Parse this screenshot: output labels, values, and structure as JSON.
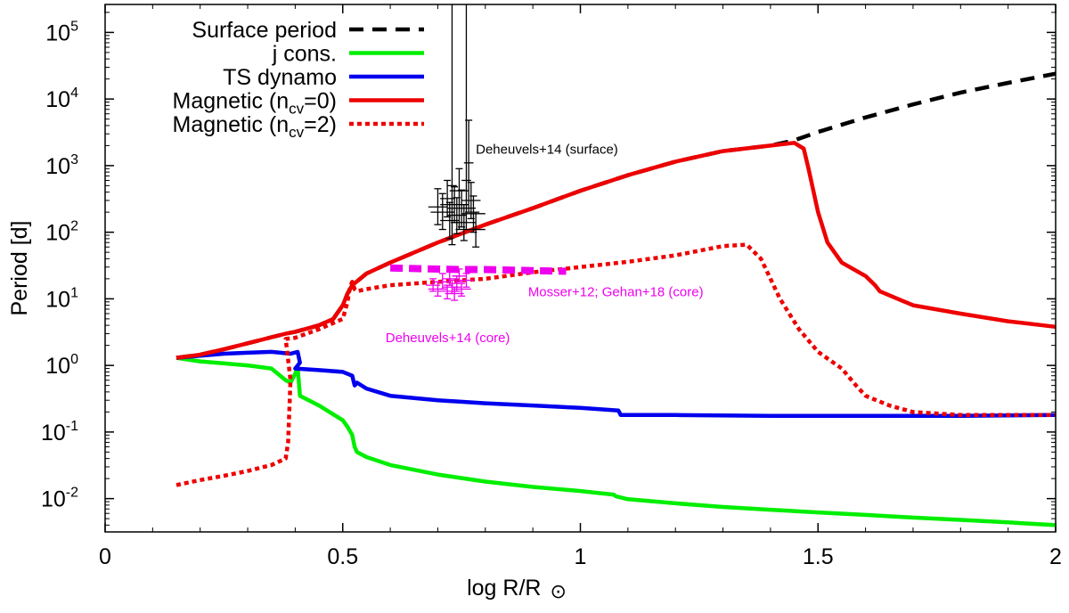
{
  "chart_data": {
    "type": "line",
    "xlabel": "log R/R",
    "xlabel_symbol": "⊙",
    "ylabel": "Period [d]",
    "xlim": [
      0,
      2
    ],
    "ylim_log10": [
      -2.5,
      5.42
    ],
    "y_scale": "log",
    "x_ticks": [
      {
        "value": 0,
        "label": "0"
      },
      {
        "value": 0.5,
        "label": "0.5"
      },
      {
        "value": 1,
        "label": "1"
      },
      {
        "value": 1.5,
        "label": "1.5"
      },
      {
        "value": 2,
        "label": "2"
      }
    ],
    "y_ticks": [
      {
        "exp": -2,
        "label": "10",
        "sup": "-2"
      },
      {
        "exp": -1,
        "label": "10",
        "sup": "-1"
      },
      {
        "exp": 0,
        "label": "10",
        "sup": "0"
      },
      {
        "exp": 1,
        "label": "10",
        "sup": "1"
      },
      {
        "exp": 2,
        "label": "10",
        "sup": "2"
      },
      {
        "exp": 3,
        "label": "10",
        "sup": "3"
      },
      {
        "exp": 4,
        "label": "10",
        "sup": "4"
      },
      {
        "exp": 5,
        "label": "10",
        "sup": "5"
      }
    ],
    "legend_position": "top-left",
    "series": [
      {
        "name": "Surface period",
        "legend_label": "Surface period",
        "color": "#000000",
        "dash": "dashed",
        "x": [
          0.15,
          0.2,
          0.25,
          0.3,
          0.35,
          0.38,
          0.4,
          0.45,
          0.48,
          0.5,
          0.51,
          0.52,
          0.55,
          0.6,
          0.7,
          0.8,
          0.9,
          1.0,
          1.1,
          1.2,
          1.3,
          1.4,
          1.45,
          1.5,
          1.6,
          1.7,
          1.8,
          1.9,
          2.0
        ],
        "y": [
          1.3,
          1.45,
          1.75,
          2.15,
          2.65,
          3.0,
          3.2,
          4.0,
          5.0,
          8.0,
          12.0,
          16.0,
          24.0,
          35.0,
          70.0,
          130.0,
          230.0,
          420.0,
          720.0,
          1150.0,
          1650.0,
          2000.0,
          2400.0,
          3200.0,
          5300.0,
          8300.0,
          12500.0,
          17500.0,
          24000.0
        ]
      },
      {
        "name": "j cons.",
        "legend_label": "j cons.",
        "color": "#00ee00",
        "dash": "solid",
        "x": [
          0.15,
          0.2,
          0.3,
          0.35,
          0.38,
          0.39,
          0.4,
          0.405,
          0.41,
          0.45,
          0.5,
          0.51,
          0.52,
          0.525,
          0.53,
          0.55,
          0.6,
          0.7,
          0.8,
          0.9,
          1.0,
          1.07,
          1.075,
          1.1,
          1.2,
          1.3,
          1.4,
          1.5,
          1.6,
          1.7,
          1.8,
          1.9,
          2.0
        ],
        "y": [
          1.3,
          1.15,
          1.0,
          0.9,
          0.6,
          0.55,
          0.75,
          0.95,
          0.35,
          0.25,
          0.15,
          0.12,
          0.09,
          0.06,
          0.05,
          0.042,
          0.032,
          0.023,
          0.018,
          0.015,
          0.013,
          0.0115,
          0.0108,
          0.0098,
          0.0085,
          0.0075,
          0.0068,
          0.0062,
          0.0057,
          0.0052,
          0.0048,
          0.0044,
          0.004
        ]
      },
      {
        "name": "TS dynamo",
        "legend_label": "TS dynamo",
        "color": "#0000ee",
        "dash": "solid",
        "x": [
          0.15,
          0.2,
          0.25,
          0.3,
          0.35,
          0.39,
          0.405,
          0.41,
          0.4,
          0.45,
          0.5,
          0.52,
          0.525,
          0.53,
          0.55,
          0.6,
          0.7,
          0.8,
          0.9,
          1.0,
          1.08,
          1.085,
          1.2,
          1.4,
          1.6,
          1.8,
          2.0
        ],
        "y": [
          1.3,
          1.4,
          1.5,
          1.55,
          1.6,
          1.5,
          1.6,
          1.1,
          0.9,
          0.85,
          0.8,
          0.7,
          0.5,
          0.55,
          0.45,
          0.35,
          0.3,
          0.27,
          0.25,
          0.23,
          0.21,
          0.18,
          0.18,
          0.175,
          0.175,
          0.175,
          0.18
        ]
      },
      {
        "name": "Magnetic (ncv=0)",
        "legend_label": "Magnetic (n",
        "legend_sub": "cv",
        "legend_suffix": "=0)",
        "color": "#ee0000",
        "dash": "solid",
        "x": [
          0.15,
          0.2,
          0.25,
          0.3,
          0.35,
          0.38,
          0.4,
          0.45,
          0.48,
          0.5,
          0.51,
          0.52,
          0.55,
          0.6,
          0.7,
          0.8,
          0.9,
          1.0,
          1.1,
          1.2,
          1.3,
          1.4,
          1.45,
          1.47,
          1.48,
          1.5,
          1.52,
          1.55,
          1.6,
          1.62,
          1.63,
          1.7,
          1.8,
          1.9,
          2.0
        ],
        "y": [
          1.3,
          1.45,
          1.75,
          2.15,
          2.65,
          3.0,
          3.2,
          4.0,
          5.0,
          8.0,
          12.0,
          16.0,
          24.0,
          35.0,
          70.0,
          130.0,
          230.0,
          420.0,
          720.0,
          1150.0,
          1650.0,
          2000.0,
          2200.0,
          1800.0,
          900.0,
          200.0,
          70.0,
          35.0,
          22.0,
          16.0,
          13.0,
          8.0,
          6.0,
          4.6,
          3.8
        ]
      },
      {
        "name": "Magnetic (ncv=2)",
        "legend_label": "Magnetic (n",
        "legend_sub": "cv",
        "legend_suffix": "=2)",
        "color": "#ee0000",
        "dash": "dotted",
        "x": [
          0.15,
          0.2,
          0.25,
          0.3,
          0.35,
          0.38,
          0.385,
          0.39,
          0.38,
          0.4,
          0.45,
          0.5,
          0.51,
          0.515,
          0.52,
          0.525,
          0.53,
          0.55,
          0.6,
          0.7,
          0.8,
          0.9,
          1.0,
          1.1,
          1.2,
          1.3,
          1.35,
          1.38,
          1.42,
          1.46,
          1.5,
          1.55,
          1.58,
          1.6,
          1.65,
          1.7,
          1.8,
          1.9,
          2.0
        ],
        "y": [
          0.016,
          0.019,
          0.022,
          0.026,
          0.032,
          0.04,
          0.07,
          0.6,
          2.5,
          2.6,
          3.5,
          5.0,
          9.0,
          15.0,
          18.0,
          14.0,
          13.0,
          14.0,
          16.0,
          18.0,
          20.0,
          25.0,
          30.0,
          36.0,
          45.0,
          62.0,
          65.0,
          40.0,
          10.0,
          3.5,
          1.6,
          0.9,
          0.5,
          0.35,
          0.25,
          0.2,
          0.18,
          0.18,
          0.18
        ]
      }
    ],
    "observations": [
      {
        "name": "Deheuvels+14 (surface)",
        "label": "Deheuvels+14 (surface)",
        "label_x": 0.78,
        "label_y": 1500,
        "color": "#000000",
        "points": [
          {
            "x": 0.7,
            "y": 240,
            "xerr": 0.02,
            "ylo": 130,
            "yhi": 450
          },
          {
            "x": 0.71,
            "y": 200,
            "xerr": 0.025,
            "ylo": 110,
            "yhi": 380
          },
          {
            "x": 0.72,
            "y": 320,
            "xerr": 0.015,
            "ylo": 170,
            "yhi": 600
          },
          {
            "x": 0.725,
            "y": 150,
            "xerr": 0.02,
            "ylo": 80,
            "yhi": 280
          },
          {
            "x": 0.73,
            "y": 500,
            "xerr": 0.01,
            "ylo": 65,
            "yhi": 300000
          },
          {
            "x": 0.735,
            "y": 260,
            "xerr": 0.03,
            "ylo": 140,
            "yhi": 480
          },
          {
            "x": 0.74,
            "y": 180,
            "xerr": 0.02,
            "ylo": 95,
            "yhi": 330
          },
          {
            "x": 0.745,
            "y": 420,
            "xerr": 0.02,
            "ylo": 110,
            "yhi": 900
          },
          {
            "x": 0.75,
            "y": 230,
            "xerr": 0.03,
            "ylo": 120,
            "yhi": 430
          },
          {
            "x": 0.755,
            "y": 140,
            "xerr": 0.025,
            "ylo": 75,
            "yhi": 260
          },
          {
            "x": 0.76,
            "y": 600,
            "xerr": 0.01,
            "ylo": 110,
            "yhi": 300000
          },
          {
            "x": 0.765,
            "y": 1100,
            "xerr": 0.01,
            "ylo": 200,
            "yhi": 4800
          },
          {
            "x": 0.77,
            "y": 300,
            "xerr": 0.02,
            "ylo": 160,
            "yhi": 560
          },
          {
            "x": 0.775,
            "y": 190,
            "xerr": 0.025,
            "ylo": 100,
            "yhi": 350
          },
          {
            "x": 0.78,
            "y": 110,
            "xerr": 0.02,
            "ylo": 60,
            "yhi": 200
          }
        ]
      },
      {
        "name": "Mosser+12; Gehan+18 (core)",
        "label": "Mosser+12; Gehan+18 (core)",
        "label_x": 0.89,
        "label_y": 11,
        "color": "#ee00ee",
        "dash": "dashed",
        "x": [
          0.6,
          0.65,
          0.7,
          0.75,
          0.8,
          0.85,
          0.9,
          0.95,
          0.97
        ],
        "y": [
          29,
          28.5,
          28,
          27.5,
          27.5,
          27,
          26.5,
          26,
          26
        ]
      },
      {
        "name": "Deheuvels+14 (core)",
        "label": "Deheuvels+14 (core)",
        "label_x": 0.59,
        "label_y": 2.25,
        "color": "#ee00ee",
        "points": [
          {
            "x": 0.69,
            "y": 16,
            "xerr": 0.015,
            "ylo": 13,
            "yhi": 20
          },
          {
            "x": 0.7,
            "y": 14,
            "xerr": 0.02,
            "ylo": 11,
            "yhi": 18
          },
          {
            "x": 0.71,
            "y": 18,
            "xerr": 0.015,
            "ylo": 14,
            "yhi": 24
          },
          {
            "x": 0.72,
            "y": 13,
            "xerr": 0.02,
            "ylo": 10,
            "yhi": 16
          },
          {
            "x": 0.725,
            "y": 20,
            "xerr": 0.015,
            "ylo": 16,
            "yhi": 26
          },
          {
            "x": 0.73,
            "y": 15,
            "xerr": 0.02,
            "ylo": 12,
            "yhi": 19
          },
          {
            "x": 0.735,
            "y": 12,
            "xerr": 0.02,
            "ylo": 9.5,
            "yhi": 15
          },
          {
            "x": 0.74,
            "y": 17,
            "xerr": 0.015,
            "ylo": 13,
            "yhi": 22
          },
          {
            "x": 0.745,
            "y": 22,
            "xerr": 0.015,
            "ylo": 18,
            "yhi": 28
          },
          {
            "x": 0.75,
            "y": 14,
            "xerr": 0.02,
            "ylo": 11,
            "yhi": 17
          },
          {
            "x": 0.76,
            "y": 19,
            "xerr": 0.015,
            "ylo": 15,
            "yhi": 24
          }
        ]
      }
    ]
  }
}
